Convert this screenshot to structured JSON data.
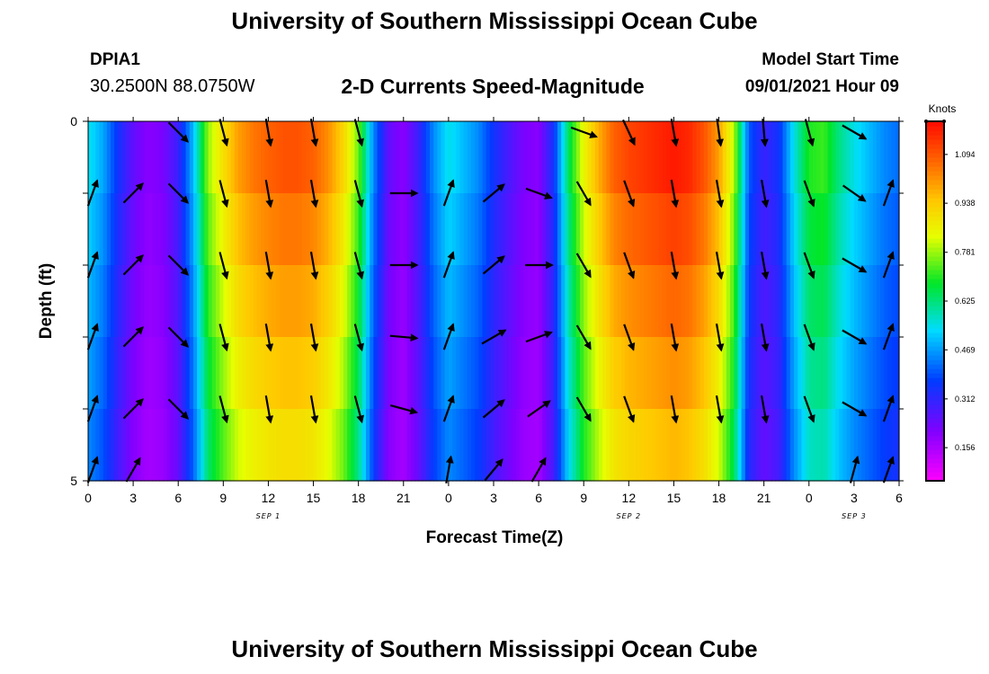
{
  "header": {
    "title_top": "University of Southern Mississippi Ocean Cube",
    "title_bottom": "University of Southern Mississippi Ocean Cube",
    "station_id": "DPIA1",
    "station_coords": "30.2500N  88.0750W",
    "model_start_label": "Model Start Time",
    "model_start_time": "09/01/2021 Hour 09"
  },
  "chart_data": {
    "type": "heatmap",
    "title": "2-D Currents Speed-Magnitude",
    "xlabel": "Forecast Time(Z)",
    "ylabel": "Depth (ft)",
    "x_hours": [
      0,
      3,
      6,
      9,
      12,
      15,
      18,
      21,
      24,
      27,
      30,
      33,
      36,
      39,
      42,
      45,
      48,
      51,
      54
    ],
    "x_tick_labels": [
      "0",
      "3",
      "6",
      "9",
      "12",
      "15",
      "18",
      "21",
      "0",
      "3",
      "6",
      "9",
      "12",
      "15",
      "18",
      "21",
      "0",
      "3",
      "6"
    ],
    "date_labels": [
      {
        "text": "SEP 1",
        "hour": 12
      },
      {
        "text": "SEP 2",
        "hour": 36
      },
      {
        "text": "SEP 3",
        "hour": 51
      }
    ],
    "xlim": [
      0,
      54
    ],
    "y_tick_labels": [
      "0",
      "5"
    ],
    "ylim": [
      0,
      5
    ],
    "depth_levels": [
      0,
      1,
      2,
      3,
      4,
      5
    ],
    "colorbar": {
      "units": "Knots",
      "ticks": [
        0.156,
        0.312,
        0.469,
        0.625,
        0.781,
        0.938,
        1.094
      ],
      "tick_labels": [
        "0.156",
        "0.312",
        "0.469",
        "0.625",
        "0.781",
        "0.938",
        "1.094"
      ],
      "range": [
        0.05,
        1.2
      ]
    },
    "speed_profile": {
      "hours": [
        0,
        1,
        2,
        3,
        4,
        5,
        6,
        7,
        8,
        9,
        10,
        11,
        12,
        13,
        14,
        15,
        16,
        17,
        18,
        19,
        20,
        21,
        22,
        23,
        24,
        25,
        26,
        27,
        28,
        29,
        30,
        31,
        32,
        33,
        34,
        35,
        36,
        37,
        38,
        39,
        40,
        41,
        42,
        43,
        44,
        45,
        46,
        47,
        48,
        49,
        50,
        51,
        52,
        53,
        54
      ],
      "surface_knots": [
        0.55,
        0.48,
        0.35,
        0.25,
        0.2,
        0.22,
        0.3,
        0.5,
        0.78,
        0.9,
        1.0,
        1.05,
        1.08,
        1.1,
        1.1,
        1.08,
        1.02,
        0.92,
        0.75,
        0.45,
        0.25,
        0.2,
        0.3,
        0.45,
        0.55,
        0.5,
        0.45,
        0.35,
        0.28,
        0.22,
        0.2,
        0.35,
        0.65,
        0.85,
        0.98,
        1.08,
        1.12,
        1.14,
        1.16,
        1.18,
        1.16,
        1.1,
        1.0,
        0.8,
        0.4,
        0.3,
        0.35,
        0.55,
        0.7,
        0.72,
        0.62,
        0.55,
        0.5,
        0.45,
        0.42
      ],
      "bottom_factor": 0.82
    },
    "vectors": {
      "hours": [
        0,
        3,
        6,
        9,
        12,
        15,
        18,
        21,
        24,
        27,
        30,
        33,
        36,
        39,
        42,
        45,
        48,
        51,
        54
      ],
      "depths": [
        0,
        1,
        2,
        3,
        4,
        5
      ],
      "row_direction_deg": [
        [
          null,
          null,
          135,
          165,
          170,
          170,
          165,
          null,
          null,
          null,
          null,
          110,
          155,
          170,
          172,
          175,
          165,
          120,
          null
        ],
        [
          20,
          45,
          135,
          165,
          170,
          170,
          165,
          90,
          20,
          50,
          110,
          150,
          160,
          170,
          170,
          170,
          160,
          125,
          20
        ],
        [
          20,
          45,
          135,
          165,
          170,
          170,
          165,
          90,
          20,
          50,
          90,
          150,
          160,
          170,
          170,
          170,
          160,
          120,
          20
        ],
        [
          20,
          45,
          135,
          165,
          170,
          170,
          165,
          95,
          20,
          60,
          70,
          150,
          160,
          170,
          170,
          170,
          160,
          120,
          20
        ],
        [
          20,
          45,
          135,
          165,
          170,
          170,
          165,
          105,
          20,
          50,
          55,
          150,
          160,
          170,
          170,
          170,
          160,
          120,
          20
        ],
        [
          20,
          30,
          null,
          null,
          null,
          null,
          null,
          null,
          10,
          40,
          30,
          null,
          null,
          null,
          null,
          null,
          null,
          15,
          20
        ]
      ]
    }
  }
}
